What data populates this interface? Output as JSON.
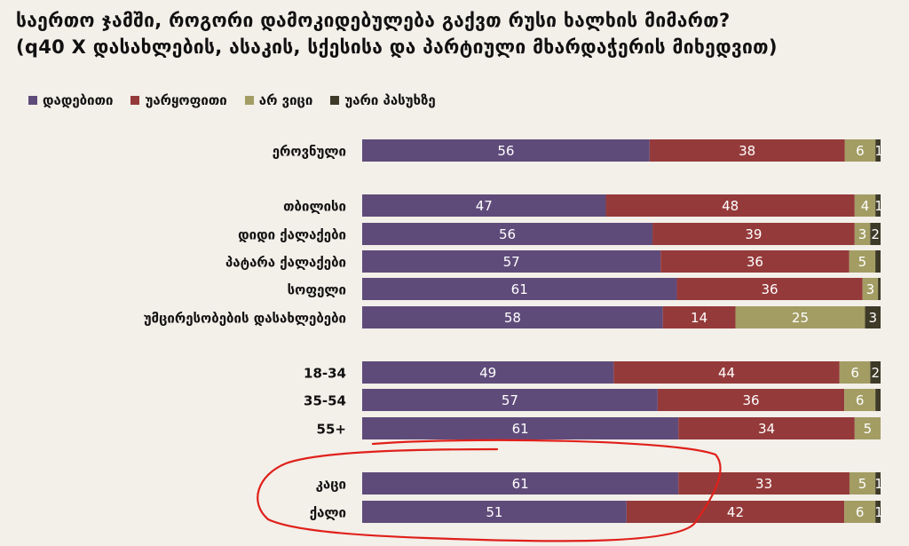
{
  "title_line1": "საერთო ჯამში, როგორი დამოკიდებულება გაქვთ რუსი ხალხის მიმართ?",
  "title_line2": "(q40 X დასახლების, ასაკის, სქესისა და პარტიული მხარდაჭერის მიხედვით)",
  "colors": {
    "positive": "#5f4b7a",
    "negative": "#953a3a",
    "dontknow": "#a39d64",
    "refused": "#3e3a28",
    "annotation": "#e0201a"
  },
  "chart_data": {
    "type": "bar",
    "orientation": "horizontal",
    "stacked": true,
    "legend_position": "top-left",
    "series": [
      {
        "name": "დადებითი",
        "color": "#5f4b7a"
      },
      {
        "name": "უარყოფითი",
        "color": "#953a3a"
      },
      {
        "name": "არ ვიცი",
        "color": "#a39d64"
      },
      {
        "name": "უარი პასუხზე",
        "color": "#3e3a28"
      }
    ],
    "categories": [
      {
        "label": "ეროვნული",
        "values": [
          56,
          38,
          6,
          1
        ],
        "labels": [
          "56",
          "38",
          "6",
          "1"
        ]
      },
      {
        "label": "თბილისი",
        "values": [
          47,
          48,
          4,
          1
        ],
        "labels": [
          "47",
          "48",
          "4",
          "1"
        ]
      },
      {
        "label": "დიდი ქალაქები",
        "values": [
          56,
          39,
          3,
          2
        ],
        "labels": [
          "56",
          "39",
          "3",
          "2"
        ]
      },
      {
        "label": "პატარა ქალაქები",
        "values": [
          57,
          36,
          5,
          1
        ],
        "labels": [
          "57",
          "36",
          "5",
          ""
        ]
      },
      {
        "label": "სოფელი",
        "values": [
          61,
          36,
          3,
          0.5
        ],
        "labels": [
          "61",
          "36",
          "3",
          ""
        ]
      },
      {
        "label": "უმცირესობების დასახლებები",
        "values": [
          58,
          14,
          25,
          3
        ],
        "labels": [
          "58",
          "14",
          "25",
          "3"
        ]
      },
      {
        "label": "18-34",
        "values": [
          49,
          44,
          6,
          2
        ],
        "labels": [
          "49",
          "44",
          "6",
          "2"
        ]
      },
      {
        "label": "35-54",
        "values": [
          57,
          36,
          6,
          1
        ],
        "labels": [
          "57",
          "36",
          "6",
          ""
        ]
      },
      {
        "label": "55+",
        "values": [
          61,
          34,
          5,
          0
        ],
        "labels": [
          "61",
          "34",
          "5",
          ""
        ]
      },
      {
        "label": "კაცი",
        "values": [
          61,
          33,
          5,
          1
        ],
        "labels": [
          "61",
          "33",
          "5",
          "1"
        ]
      },
      {
        "label": "ქალი",
        "values": [
          51,
          42,
          6,
          1
        ],
        "labels": [
          "51",
          "42",
          "6",
          "1"
        ]
      }
    ]
  }
}
